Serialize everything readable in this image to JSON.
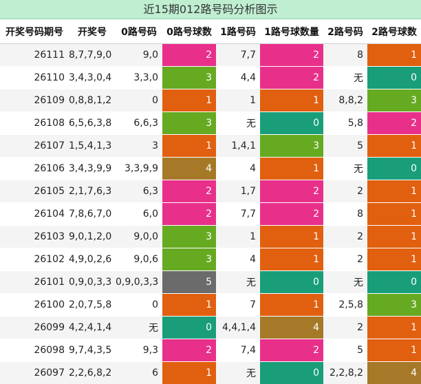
{
  "title": "近15期012路号码分析图示",
  "headers": [
    "开奖号码期号",
    "开奖号",
    "0路号码",
    "0路号球数",
    "1路号码",
    "1路号球数量",
    "2路号码",
    "2路号球数"
  ],
  "count_colors": {
    "0": "#1a9e7a",
    "1": "#e06010",
    "2": "#e8308a",
    "3": "#66aa22",
    "4": "#a57928",
    "5": "#6b6b6b"
  },
  "rows": [
    {
      "issue": "26111",
      "number": "8,7,7,9,0",
      "r0": "9,0",
      "c0": "2",
      "r1": "7,7",
      "c1": "2",
      "r2": "8",
      "c2": "1"
    },
    {
      "issue": "26110",
      "number": "3,4,3,0,4",
      "r0": "3,3,0",
      "c0": "3",
      "r1": "4,4",
      "c1": "2",
      "r2": "无",
      "c2": "0"
    },
    {
      "issue": "26109",
      "number": "0,8,8,1,2",
      "r0": "0",
      "c0": "1",
      "r1": "1",
      "c1": "1",
      "r2": "8,8,2",
      "c2": "3"
    },
    {
      "issue": "26108",
      "number": "6,5,6,3,8",
      "r0": "6,6,3",
      "c0": "3",
      "r1": "无",
      "c1": "0",
      "r2": "5,8",
      "c2": "2"
    },
    {
      "issue": "26107",
      "number": "1,5,4,1,3",
      "r0": "3",
      "c0": "1",
      "r1": "1,4,1",
      "c1": "3",
      "r2": "5",
      "c2": "1"
    },
    {
      "issue": "26106",
      "number": "3,4,3,9,9",
      "r0": "3,3,9,9",
      "c0": "4",
      "r1": "4",
      "c1": "1",
      "r2": "无",
      "c2": "0"
    },
    {
      "issue": "26105",
      "number": "2,1,7,6,3",
      "r0": "6,3",
      "c0": "2",
      "r1": "1,7",
      "c1": "2",
      "r2": "2",
      "c2": "1"
    },
    {
      "issue": "26104",
      "number": "7,8,6,7,0",
      "r0": "6,0",
      "c0": "2",
      "r1": "7,7",
      "c1": "2",
      "r2": "8",
      "c2": "1"
    },
    {
      "issue": "26103",
      "number": "9,0,1,2,0",
      "r0": "9,0,0",
      "c0": "3",
      "r1": "1",
      "c1": "1",
      "r2": "2",
      "c2": "1"
    },
    {
      "issue": "26102",
      "number": "4,9,0,2,6",
      "r0": "9,0,6",
      "c0": "3",
      "r1": "4",
      "c1": "1",
      "r2": "2",
      "c2": "1"
    },
    {
      "issue": "26101",
      "number": "0,9,0,3,3",
      "r0": "0,9,0,3,3",
      "c0": "5",
      "r1": "无",
      "c1": "0",
      "r2": "无",
      "c2": "0"
    },
    {
      "issue": "26100",
      "number": "2,0,7,5,8",
      "r0": "0",
      "c0": "1",
      "r1": "7",
      "c1": "1",
      "r2": "2,5,8",
      "c2": "3"
    },
    {
      "issue": "26099",
      "number": "4,2,4,1,4",
      "r0": "无",
      "c0": "0",
      "r1": "4,4,1,4",
      "c1": "4",
      "r2": "2",
      "c2": "1"
    },
    {
      "issue": "26098",
      "number": "9,7,4,3,5",
      "r0": "9,3",
      "c0": "2",
      "r1": "7,4",
      "c1": "2",
      "r2": "5",
      "c2": "1"
    },
    {
      "issue": "26097",
      "number": "2,2,6,8,2",
      "r0": "6",
      "c0": "1",
      "r1": "无",
      "c1": "0",
      "r2": "2,2,8,2",
      "c2": "4"
    }
  ]
}
